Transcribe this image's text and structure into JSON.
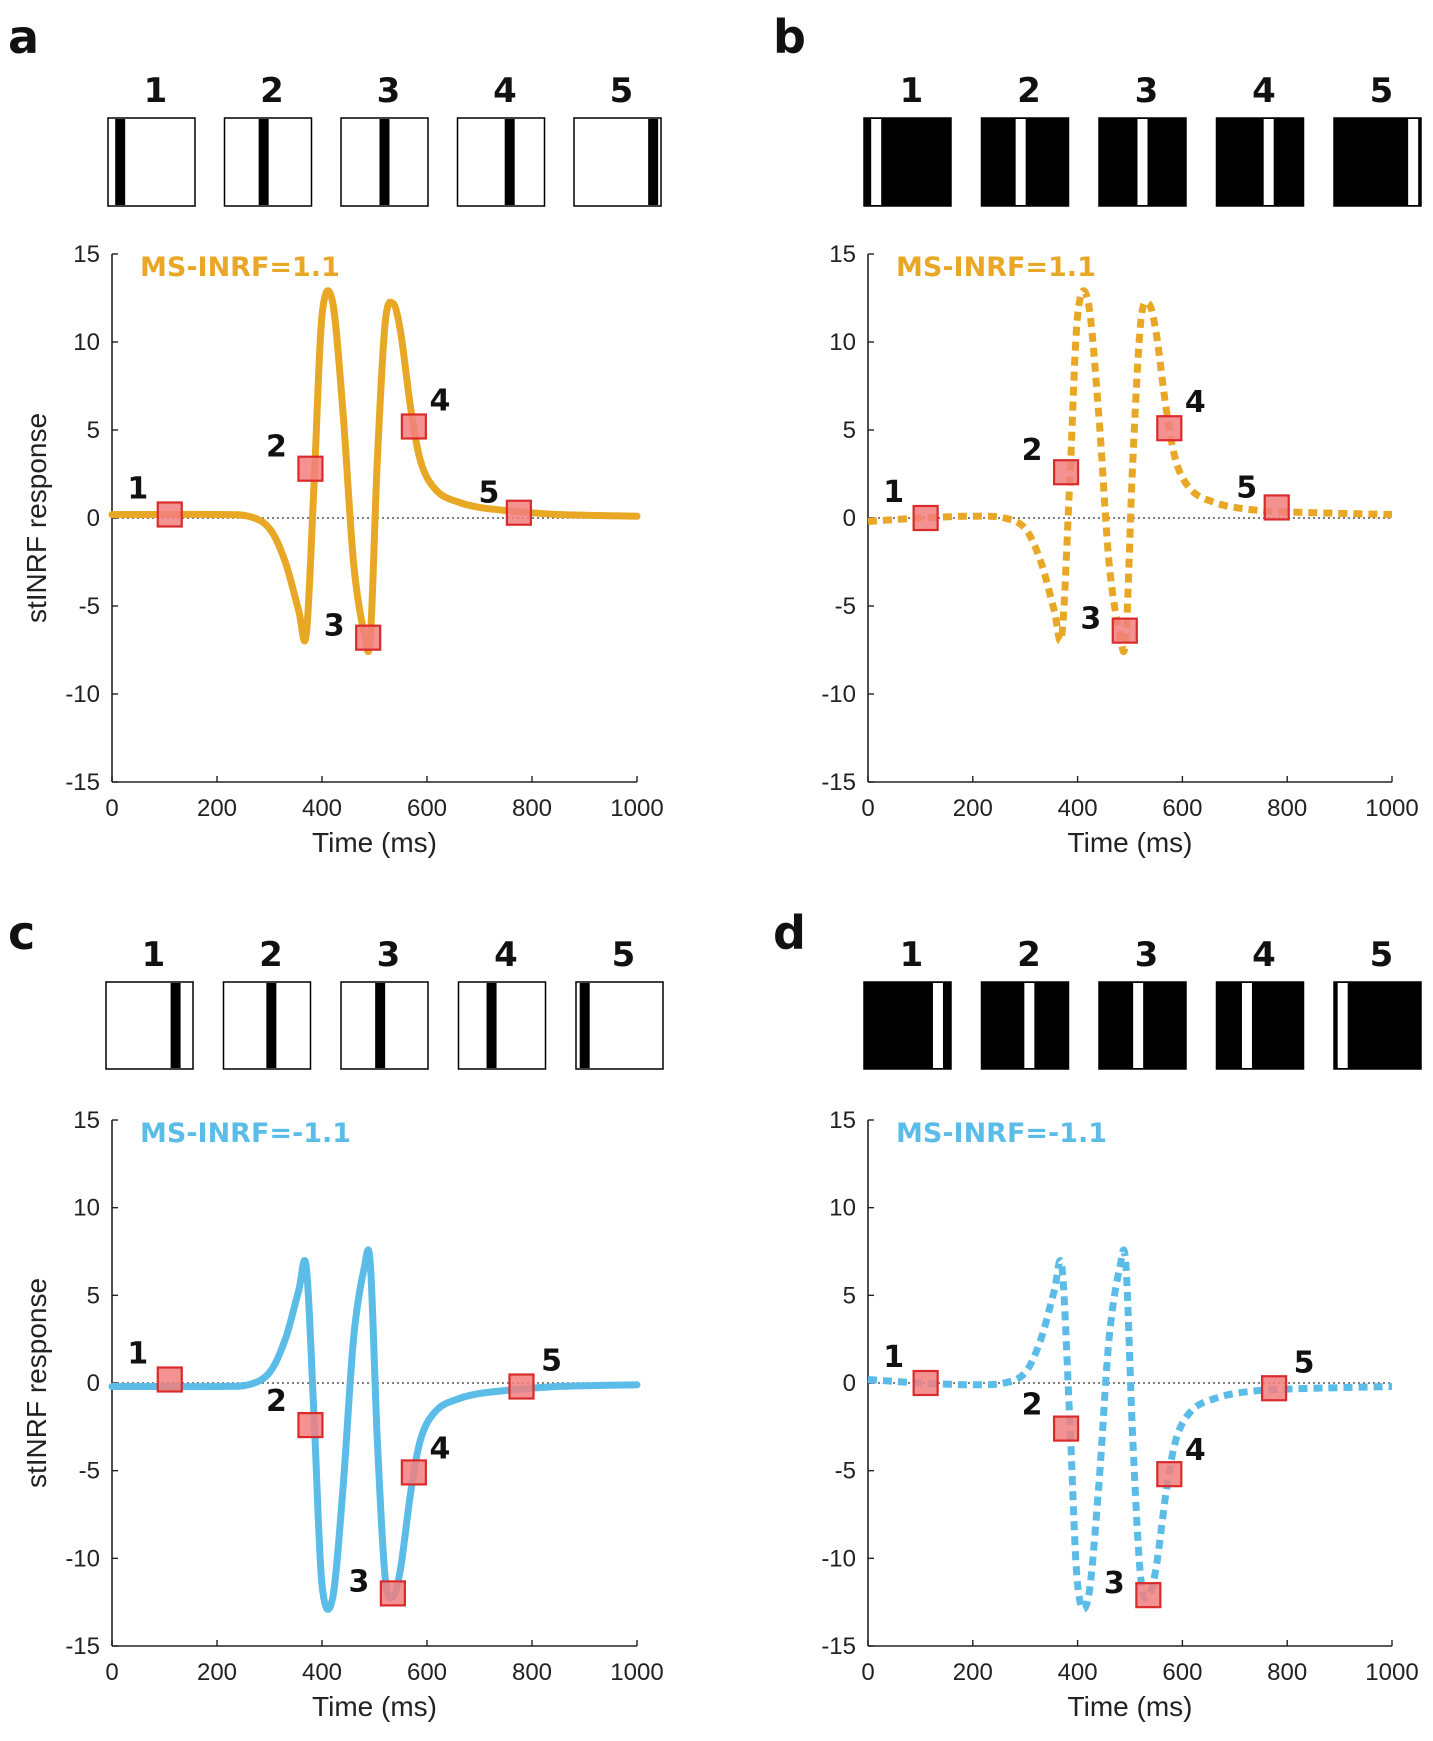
{
  "colors": {
    "yellow": "#E8A825",
    "blue": "#5BBCE8",
    "marker_fill": "#F27F7F",
    "marker_edge": "#D92B2B",
    "axis": "#222222"
  },
  "panels": [
    {
      "letter": "a",
      "stimulus": {
        "ground": "white",
        "bar": "black",
        "labels": [
          "1",
          "2",
          "3",
          "4",
          "5"
        ],
        "bar_positions": [
          0.14,
          0.45,
          0.5,
          0.6,
          0.91
        ]
      },
      "chart_data": {
        "type": "line",
        "title": "",
        "xlabel": "Time (ms)",
        "ylabel": "stINRF response",
        "xlim": [
          0,
          1000
        ],
        "ylim": [
          -15,
          15
        ],
        "xticks": [
          "0",
          "200",
          "400",
          "600",
          "800",
          "1000"
        ],
        "yticks": [
          "15",
          "10",
          "5",
          "0",
          "-5",
          "-10",
          "-15"
        ],
        "series": [
          {
            "name": "MS-INRF=1.1",
            "label": "MS-INRF=1.1",
            "color": "yellow",
            "style": "solid",
            "x": [
              0,
              100,
              200,
              260,
              300,
              330,
              355,
              370,
              385,
              400,
              420,
              440,
              460,
              480,
              492,
              505,
              520,
              535,
              550,
              570,
              590,
              620,
              660,
              700,
              760,
              850,
              1000
            ],
            "y": [
              0.2,
              0.2,
              0.2,
              0.1,
              -0.6,
              -2.5,
              -5.2,
              -6.6,
              2.0,
              11.5,
              12.3,
              6.0,
              -2.5,
              -6.5,
              -6.8,
              3.0,
              11.0,
              12.2,
              10.5,
              6.0,
              3.0,
              1.5,
              0.9,
              0.6,
              0.4,
              0.2,
              0.1
            ]
          }
        ],
        "markers": [
          {
            "label": "1",
            "x": 110,
            "y": 0.2
          },
          {
            "label": "2",
            "x": 378,
            "y": 2.8
          },
          {
            "label": "3",
            "x": 488,
            "y": -6.8
          },
          {
            "label": "4",
            "x": 575,
            "y": 5.2
          },
          {
            "label": "5",
            "x": 775,
            "y": 0.3
          }
        ]
      }
    },
    {
      "letter": "b",
      "stimulus": {
        "ground": "black",
        "bar": "white",
        "labels": [
          "1",
          "2",
          "3",
          "4",
          "5"
        ],
        "bar_positions": [
          0.14,
          0.45,
          0.5,
          0.6,
          0.91
        ]
      },
      "chart_data": {
        "type": "line",
        "title": "",
        "xlabel": "Time (ms)",
        "ylabel": "",
        "xlim": [
          0,
          1000
        ],
        "ylim": [
          -15,
          15
        ],
        "xticks": [
          "0",
          "200",
          "400",
          "600",
          "800",
          "1000"
        ],
        "yticks": [
          "15",
          "10",
          "5",
          "0",
          "-5",
          "-10",
          "-15"
        ],
        "series": [
          {
            "name": "MS-INRF=1.1",
            "label": "MS-INRF=1.1",
            "color": "yellow",
            "style": "dotted",
            "x": [
              0,
              100,
              200,
              260,
              300,
              330,
              355,
              370,
              385,
              400,
              420,
              440,
              460,
              480,
              492,
              505,
              520,
              535,
              550,
              570,
              590,
              620,
              660,
              700,
              760,
              850,
              1000
            ],
            "y": [
              -0.2,
              0.0,
              0.1,
              0.0,
              -0.6,
              -2.5,
              -5.2,
              -6.6,
              2.0,
              11.5,
              12.3,
              6.0,
              -2.5,
              -6.5,
              -6.8,
              3.0,
              11.0,
              12.2,
              10.5,
              6.0,
              3.0,
              1.5,
              0.9,
              0.6,
              0.4,
              0.3,
              0.2
            ]
          }
        ],
        "markers": [
          {
            "label": "1",
            "x": 110,
            "y": 0.0
          },
          {
            "label": "2",
            "x": 378,
            "y": 2.6
          },
          {
            "label": "3",
            "x": 490,
            "y": -6.4
          },
          {
            "label": "4",
            "x": 575,
            "y": 5.1
          },
          {
            "label": "5",
            "x": 780,
            "y": 0.6
          }
        ]
      }
    },
    {
      "letter": "c",
      "stimulus": {
        "ground": "white",
        "bar": "black",
        "labels": [
          "1",
          "2",
          "3",
          "4",
          "5"
        ],
        "bar_positions": [
          0.8,
          0.55,
          0.45,
          0.38,
          0.1
        ]
      },
      "chart_data": {
        "type": "line",
        "title": "",
        "xlabel": "Time (ms)",
        "ylabel": "stINRF response",
        "xlim": [
          0,
          1000
        ],
        "ylim": [
          -15,
          15
        ],
        "xticks": [
          "0",
          "200",
          "400",
          "600",
          "800",
          "1000"
        ],
        "yticks": [
          "15",
          "10",
          "5",
          "0",
          "-5",
          "-10",
          "-15"
        ],
        "series": [
          {
            "name": "MS-INRF=-1.1",
            "label": "MS-INRF=-1.1",
            "color": "blue",
            "style": "solid",
            "x": [
              0,
              100,
              200,
              260,
              300,
              330,
              355,
              370,
              385,
              400,
              420,
              440,
              460,
              480,
              492,
              505,
              520,
              535,
              550,
              570,
              590,
              620,
              660,
              700,
              760,
              850,
              1000
            ],
            "y": [
              -0.2,
              -0.2,
              -0.2,
              -0.1,
              0.6,
              2.5,
              5.2,
              6.6,
              -2.0,
              -11.5,
              -12.3,
              -6.0,
              2.5,
              6.5,
              6.8,
              -3.0,
              -11.0,
              -12.2,
              -10.5,
              -6.0,
              -3.0,
              -1.5,
              -0.9,
              -0.6,
              -0.4,
              -0.2,
              -0.1
            ]
          }
        ],
        "markers": [
          {
            "label": "1",
            "x": 110,
            "y": 0.2
          },
          {
            "label": "2",
            "x": 378,
            "y": -2.4
          },
          {
            "label": "3",
            "x": 535,
            "y": -12.0
          },
          {
            "label": "4",
            "x": 575,
            "y": -5.1
          },
          {
            "label": "5",
            "x": 780,
            "y": -0.2
          }
        ]
      }
    },
    {
      "letter": "d",
      "stimulus": {
        "ground": "black",
        "bar": "white",
        "labels": [
          "1",
          "2",
          "3",
          "4",
          "5"
        ],
        "bar_positions": [
          0.85,
          0.55,
          0.45,
          0.35,
          0.1
        ]
      },
      "chart_data": {
        "type": "line",
        "title": "",
        "xlabel": "Time (ms)",
        "ylabel": "",
        "xlim": [
          0,
          1000
        ],
        "ylim": [
          -15,
          15
        ],
        "xticks": [
          "0",
          "200",
          "400",
          "600",
          "800",
          "1000"
        ],
        "yticks": [
          "15",
          "10",
          "5",
          "0",
          "-5",
          "-10",
          "-15"
        ],
        "series": [
          {
            "name": "MS-INRF=-1.1",
            "label": "MS-INRF=-1.1",
            "color": "blue",
            "style": "dotted",
            "x": [
              0,
              100,
              200,
              260,
              300,
              330,
              355,
              370,
              385,
              400,
              420,
              440,
              460,
              480,
              492,
              505,
              520,
              535,
              550,
              570,
              590,
              620,
              660,
              700,
              760,
              850,
              1000
            ],
            "y": [
              0.2,
              0.0,
              -0.1,
              0.0,
              0.6,
              2.5,
              5.2,
              6.6,
              -2.0,
              -11.5,
              -12.3,
              -6.0,
              2.5,
              6.5,
              6.8,
              -3.0,
              -11.0,
              -12.2,
              -10.5,
              -6.0,
              -3.0,
              -1.5,
              -0.9,
              -0.6,
              -0.4,
              -0.3,
              -0.2
            ]
          }
        ],
        "markers": [
          {
            "label": "1",
            "x": 110,
            "y": 0.0
          },
          {
            "label": "2",
            "x": 378,
            "y": -2.6
          },
          {
            "label": "3",
            "x": 535,
            "y": -12.1
          },
          {
            "label": "4",
            "x": 575,
            "y": -5.2
          },
          {
            "label": "5",
            "x": 775,
            "y": -0.3
          }
        ]
      }
    }
  ]
}
